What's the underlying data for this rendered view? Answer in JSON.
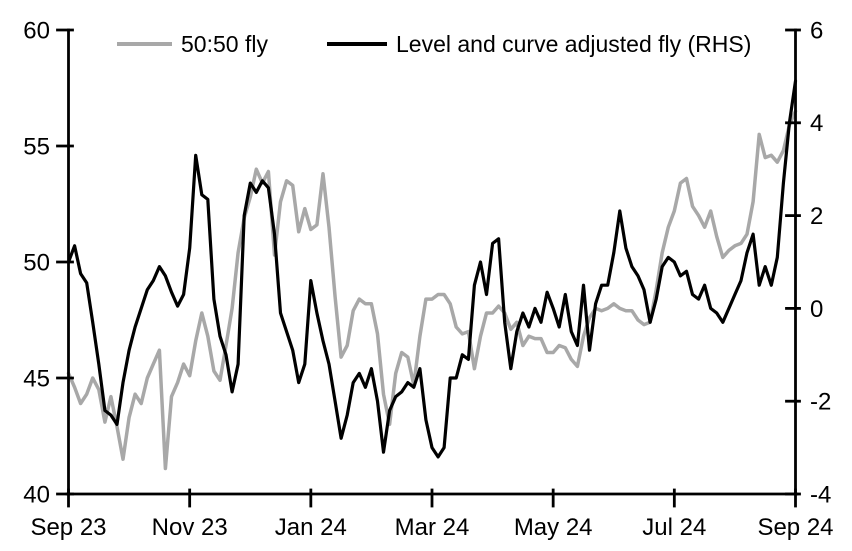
{
  "chart_data": {
    "type": "line",
    "title": "",
    "background_color": "#ffffff",
    "grid": false,
    "x_axis": {
      "unit": "months since Sep 2023",
      "range_months": [
        0,
        12
      ],
      "tick_positions_months": [
        0,
        2,
        4,
        6,
        8,
        10,
        12
      ],
      "tick_labels": [
        "Sep 23",
        "Nov 23",
        "Jan 24",
        "Mar 24",
        "May 24",
        "Jul 24",
        "Sep 24"
      ]
    },
    "left_axis": {
      "range": [
        40,
        60
      ],
      "ticks": [
        40,
        45,
        50,
        55,
        60
      ],
      "tick_labels": [
        "40",
        "45",
        "50",
        "55",
        "60"
      ]
    },
    "right_axis": {
      "range": [
        -4,
        6
      ],
      "ticks": [
        -4,
        -2,
        0,
        2,
        4,
        6
      ],
      "tick_labels": [
        "-4",
        "-2",
        "0",
        "2",
        "4",
        "6"
      ]
    },
    "legend": {
      "position": "top-inside",
      "entries": [
        "50:50 fly",
        "Level and curve adjusted fly (RHS)"
      ]
    },
    "series": [
      {
        "name": "50:50 fly",
        "axis": "left",
        "color": "#a8a8a8",
        "line_width": 3.5,
        "x_start_months": 0,
        "x_step_months": 0.1,
        "values": [
          45.2,
          44.6,
          43.9,
          44.3,
          45.0,
          44.5,
          43.1,
          44.2,
          42.9,
          41.5,
          43.3,
          44.3,
          43.9,
          45.0,
          45.6,
          46.2,
          41.1,
          44.2,
          44.8,
          45.6,
          45.1,
          46.6,
          47.8,
          46.8,
          45.3,
          44.9,
          46.4,
          48.0,
          50.4,
          51.9,
          52.8,
          54.0,
          53.4,
          53.9,
          50.3,
          52.6,
          53.5,
          53.3,
          51.3,
          52.3,
          51.4,
          51.6,
          53.8,
          51.5,
          48.5,
          45.9,
          46.4,
          47.9,
          48.4,
          48.2,
          48.2,
          46.9,
          44.3,
          43.0,
          45.2,
          46.1,
          45.9,
          44.7,
          46.8,
          48.4,
          48.4,
          48.6,
          48.6,
          48.2,
          47.2,
          46.9,
          47.0,
          45.4,
          46.8,
          47.8,
          47.8,
          48.1,
          47.8,
          47.1,
          47.4,
          46.4,
          46.8,
          46.7,
          46.7,
          46.1,
          46.1,
          46.4,
          46.3,
          45.8,
          45.5,
          46.8,
          47.6,
          48.0,
          47.9,
          48.0,
          48.2,
          48.0,
          47.9,
          47.9,
          47.5,
          47.3,
          47.4,
          48.8,
          50.4,
          51.5,
          52.2,
          53.4,
          53.6,
          52.4,
          52.0,
          51.5,
          52.2,
          51.1,
          50.2,
          50.5,
          50.7,
          50.8,
          51.2,
          52.6,
          55.5,
          54.5,
          54.6,
          54.3,
          54.8,
          55.9,
          56.5
        ]
      },
      {
        "name": "Level and curve adjusted fly (RHS)",
        "axis": "right",
        "color": "#000000",
        "line_width": 3.2,
        "x_start_months": 0,
        "x_step_months": 0.1,
        "values": [
          1.0,
          1.35,
          0.75,
          0.55,
          -0.3,
          -1.2,
          -2.2,
          -2.3,
          -2.5,
          -1.6,
          -0.9,
          -0.4,
          0.0,
          0.4,
          0.6,
          0.9,
          0.7,
          0.35,
          0.05,
          0.3,
          1.3,
          3.3,
          2.45,
          2.35,
          0.2,
          -0.6,
          -1.0,
          -1.8,
          -1.2,
          2.0,
          2.7,
          2.5,
          2.75,
          2.6,
          1.6,
          -0.1,
          -0.5,
          -0.9,
          -1.6,
          -1.2,
          0.6,
          -0.1,
          -0.7,
          -1.2,
          -2.0,
          -2.8,
          -2.3,
          -1.6,
          -1.4,
          -1.7,
          -1.3,
          -2.0,
          -3.1,
          -2.2,
          -1.9,
          -1.8,
          -1.6,
          -1.7,
          -1.3,
          -2.4,
          -3.0,
          -3.2,
          -3.0,
          -1.5,
          -1.5,
          -1.0,
          -1.1,
          0.5,
          1.0,
          0.3,
          1.4,
          1.5,
          -0.3,
          -1.3,
          -0.5,
          -0.1,
          -0.4,
          0.0,
          -0.3,
          0.35,
          0.0,
          -0.4,
          0.3,
          -0.5,
          -0.8,
          0.5,
          -0.9,
          0.1,
          0.5,
          0.5,
          1.2,
          2.1,
          1.3,
          0.9,
          0.7,
          0.4,
          -0.3,
          0.2,
          0.9,
          1.1,
          1.0,
          0.7,
          0.8,
          0.3,
          0.2,
          0.5,
          0.0,
          -0.1,
          -0.3,
          0.0,
          0.3,
          0.6,
          1.2,
          1.6,
          0.5,
          0.9,
          0.5,
          1.1,
          2.7,
          4.0,
          4.9
        ]
      }
    ]
  }
}
